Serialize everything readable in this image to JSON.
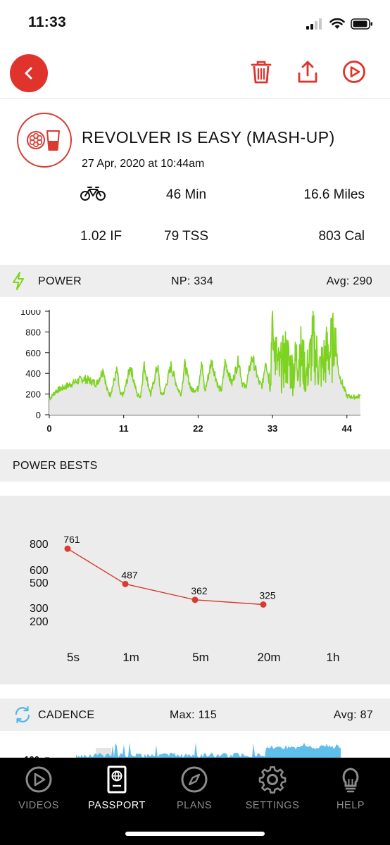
{
  "status_bar": {
    "time": "11:33"
  },
  "colors": {
    "brand_red": "#e0332c",
    "power_green": "#7ed321",
    "cadence_blue": "#4fb8e8",
    "bests_red": "#d93a31"
  },
  "icons": {
    "back": "chevron-left-icon",
    "delete": "trash-icon",
    "share": "share-icon",
    "play": "play-circle-icon",
    "activity": "revolver-glass-icon",
    "bike": "bicycle-icon",
    "power": "lightning-icon",
    "cadence": "refresh-icon"
  },
  "ride": {
    "title": "REVOLVER IS EASY (MASH-UP)",
    "date": "27 Apr, 2020 at 10:44am",
    "duration": "46 Min",
    "distance": "16.6 Miles",
    "intensity_factor": "1.02 IF",
    "tss": "79 TSS",
    "calories": "803 Cal"
  },
  "power": {
    "label": "POWER",
    "np": "NP: 334",
    "avg": "Avg: 290",
    "y_ticks": [
      "0",
      "200",
      "400",
      "600",
      "800",
      "1000"
    ],
    "x_ticks": [
      "0",
      "11",
      "22",
      "33",
      "44"
    ]
  },
  "power_bests": {
    "label": "POWER BESTS",
    "y_ticks": [
      "800",
      "600",
      "500",
      "300",
      "200"
    ],
    "x_labels": [
      "5s",
      "1m",
      "5m",
      "20m",
      "1h"
    ]
  },
  "cadence": {
    "label": "CADENCE",
    "max": "Max: 115",
    "avg": "Avg: 87",
    "y_tick_top": "100"
  },
  "chart_data": [
    {
      "type": "line",
      "title": "POWER",
      "xlabel": "",
      "ylabel": "",
      "xlim": [
        0,
        46
      ],
      "ylim": [
        0,
        1000
      ],
      "x_ticks": [
        0,
        11,
        22,
        33,
        44
      ],
      "y_ticks": [
        0,
        200,
        400,
        600,
        800,
        1000
      ],
      "series": [
        {
          "x": [
            0,
            1,
            2,
            3,
            4,
            5,
            6,
            7,
            8,
            8.5,
            9,
            10,
            10.5,
            11,
            12,
            13,
            13.5,
            14,
            15,
            16,
            16.5,
            17,
            18,
            19,
            19.5,
            20,
            21,
            22,
            22.5,
            23,
            24,
            25,
            25.5,
            26,
            27,
            28,
            28.5,
            29,
            30,
            31,
            31.5,
            32,
            32.5,
            33,
            34,
            35,
            36,
            37,
            38,
            39,
            40,
            41,
            42,
            43,
            44,
            45,
            46
          ],
          "values": [
            150,
            230,
            260,
            290,
            320,
            350,
            330,
            300,
            440,
            250,
            190,
            430,
            190,
            200,
            470,
            190,
            180,
            480,
            190,
            480,
            190,
            220,
            470,
            250,
            200,
            490,
            240,
            250,
            520,
            220,
            520,
            260,
            240,
            510,
            300,
            530,
            310,
            260,
            560,
            310,
            280,
            540,
            320,
            700,
            420,
            560,
            410,
            620,
            380,
            680,
            430,
            580,
            650,
            360,
            180,
            170,
            180
          ]
        }
      ]
    },
    {
      "type": "line",
      "title": "POWER BESTS",
      "xlabel": "",
      "ylabel": "",
      "categories": [
        "5s",
        "1m",
        "5m",
        "20m",
        "1h"
      ],
      "series": [
        {
          "values": [
            761,
            487,
            362,
            325,
            null
          ]
        }
      ],
      "data_labels": [
        "761",
        "487",
        "362",
        "325"
      ]
    },
    {
      "type": "bar",
      "title": "CADENCE",
      "xlabel": "",
      "ylabel": "",
      "y_ticks": [
        100
      ]
    }
  ],
  "nav": [
    {
      "label": "VIDEOS",
      "icon": "video-play-icon"
    },
    {
      "label": "PASSPORT",
      "icon": "passport-icon"
    },
    {
      "label": "PLANS",
      "icon": "compass-icon"
    },
    {
      "label": "SETTINGS",
      "icon": "gear-icon"
    },
    {
      "label": "HELP",
      "icon": "lightbulb-icon"
    }
  ]
}
